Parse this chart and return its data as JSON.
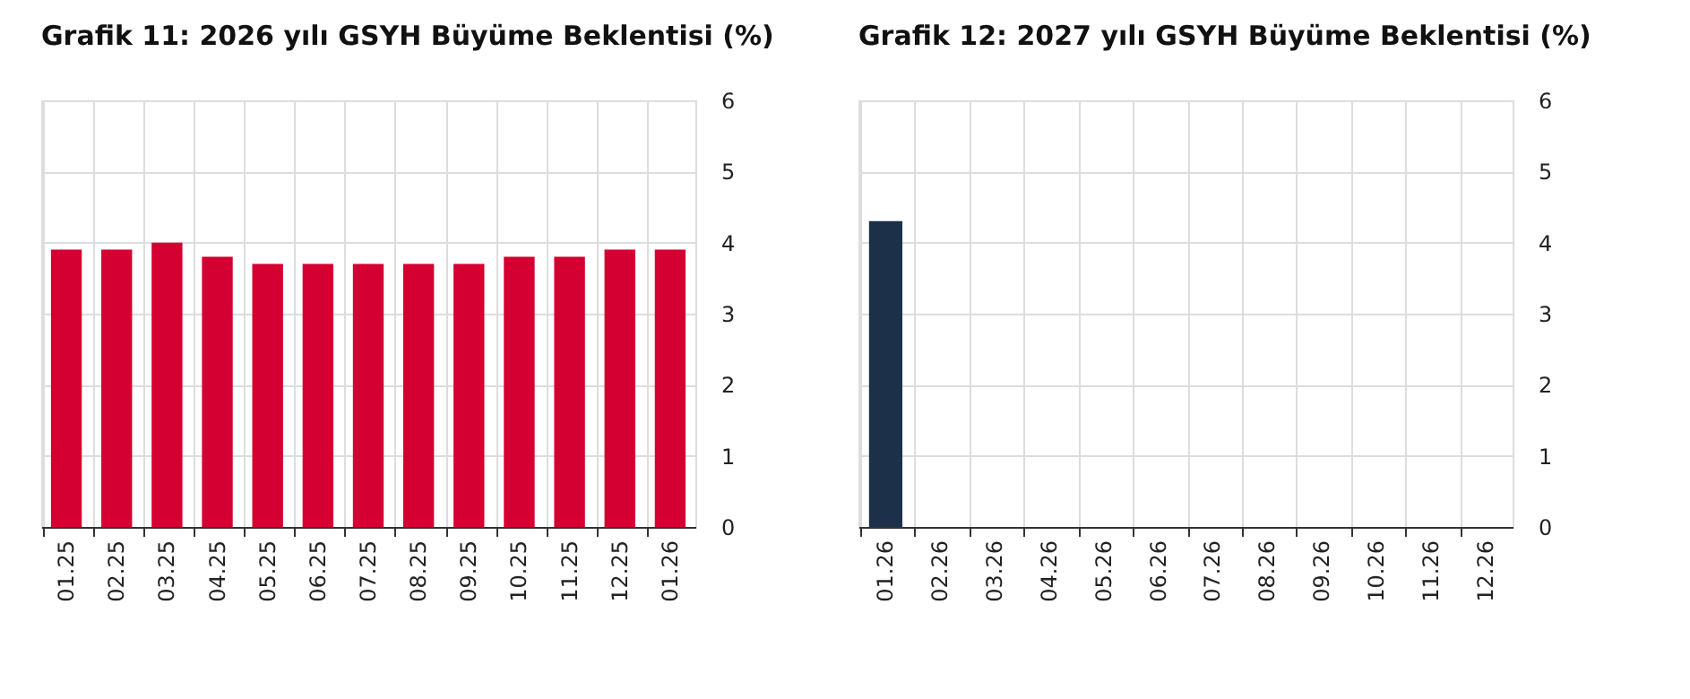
{
  "chart_data": [
    {
      "type": "bar",
      "title": "Grafik 11: 2026 yılı GSYH Büyüme Beklentisi (%)",
      "categories": [
        "01.25",
        "02.25",
        "03.25",
        "04.25",
        "05.25",
        "06.25",
        "07.25",
        "08.25",
        "09.25",
        "10.25",
        "11.25",
        "12.25",
        "01.26"
      ],
      "series": [
        {
          "color": "#d50032",
          "values": [
            3.9,
            3.9,
            4.0,
            3.8,
            3.7,
            3.7,
            3.7,
            3.7,
            3.7,
            3.8,
            3.8,
            3.9,
            3.9
          ]
        }
      ],
      "ylim": [
        0,
        6
      ],
      "yticks": [
        0,
        1,
        2,
        3,
        4,
        5,
        6
      ],
      "grid": true,
      "legend": false
    },
    {
      "type": "bar",
      "title": "Grafik 12: 2027 yılı GSYH Büyüme Beklentisi (%)",
      "categories": [
        "01.26",
        "02.26",
        "03.26",
        "04.26",
        "05.26",
        "06.26",
        "07.26",
        "08.26",
        "09.26",
        "10.26",
        "11.26",
        "12.26"
      ],
      "series": [
        {
          "color": "#1c3049",
          "values": [
            4.3,
            null,
            null,
            null,
            null,
            null,
            null,
            null,
            null,
            null,
            null,
            null
          ]
        }
      ],
      "ylim": [
        0,
        6
      ],
      "yticks": [
        0,
        1,
        2,
        3,
        4,
        5,
        6
      ],
      "grid": true,
      "legend": false
    }
  ]
}
